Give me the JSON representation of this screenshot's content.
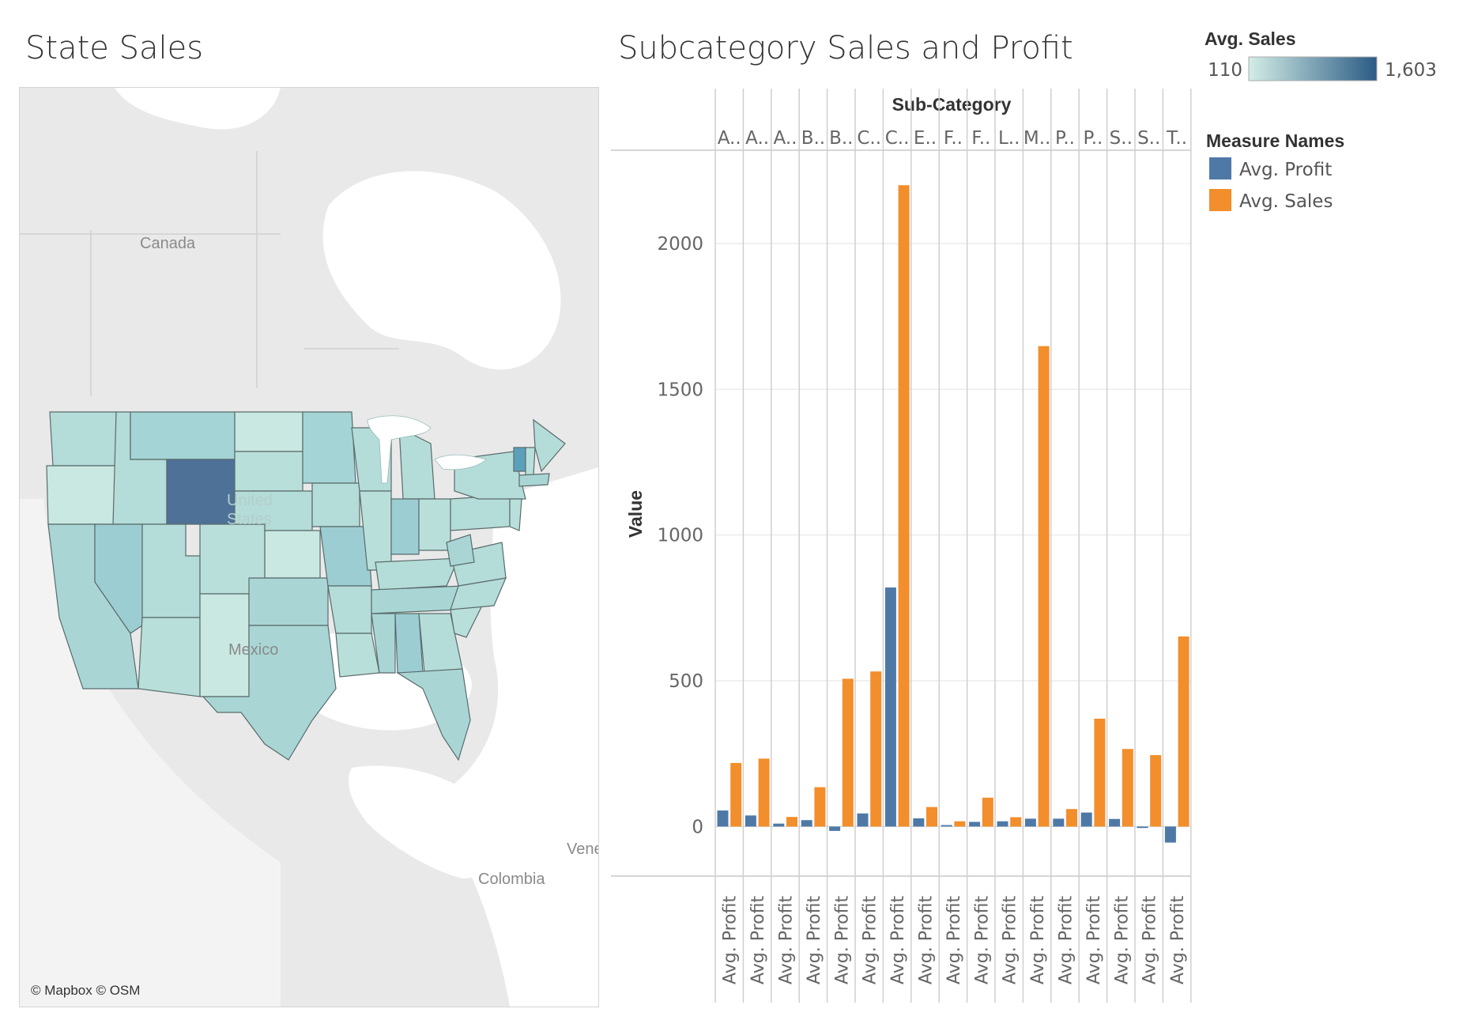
{
  "map": {
    "title": "State Sales",
    "labels": {
      "canada": "Canada",
      "mexico": "Mexico",
      "united_states": "United States",
      "venezuela": "Venez",
      "colombia": "Colombia"
    },
    "attribution": "© Mapbox © OSM",
    "colors": {
      "low": "#c9e8e1",
      "mid": "#a4d4d6",
      "high": "#4e7198",
      "vermont": "#5ba0bb"
    }
  },
  "chart_title": "Subcategory Sales and Profit",
  "color_legend": {
    "title": "Avg. Sales",
    "min_label": "110",
    "max_label": "1,603",
    "min_color": "#d3ede6",
    "max_color": "#2b5b84"
  },
  "measure_legend": {
    "title": "Measure Names",
    "items": [
      {
        "label": "Avg. Profit",
        "color": "#4e79a7"
      },
      {
        "label": "Avg. Sales",
        "color": "#f28e2b"
      }
    ]
  },
  "chart_data": {
    "type": "bar",
    "title": "Subcategory Sales and Profit",
    "column_header": "Sub-Category",
    "ylabel": "Value",
    "ylim": [
      -170,
      2320
    ],
    "yticks": [
      0,
      500,
      1000,
      1500,
      2000
    ],
    "grid": true,
    "legend": "top-right",
    "categories": [
      "A..",
      "A..",
      "A..",
      "B..",
      "B..",
      "C..",
      "C..",
      "E..",
      "F..",
      "F..",
      "L..",
      "M..",
      "P..",
      "P..",
      "S..",
      "S..",
      "T.."
    ],
    "bottom_axis_label": "Avg. Profit",
    "series": [
      {
        "name": "Avg. Profit",
        "values": [
          55,
          38,
          10,
          22,
          -15,
          45,
          820,
          28,
          5,
          16,
          18,
          27,
          27,
          48,
          26,
          -5,
          -55
        ]
      },
      {
        "name": "Avg. Sales",
        "values": [
          218,
          233,
          33,
          135,
          507,
          532,
          2200,
          67,
          18,
          99,
          32,
          1648,
          60,
          370,
          266,
          245,
          652
        ]
      }
    ]
  }
}
